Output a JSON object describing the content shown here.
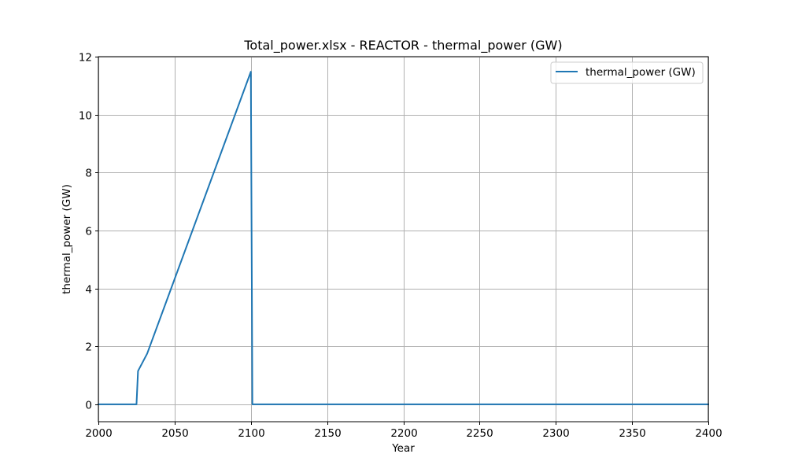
{
  "chart_data": {
    "type": "line",
    "title": "Total_power.xlsx - REACTOR - thermal_power (GW)",
    "xlabel": "Year",
    "ylabel": "thermal_power (GW)",
    "xlim": [
      2000,
      2400
    ],
    "ylim": [
      -0.6,
      12.0
    ],
    "xticks": [
      2000,
      2050,
      2100,
      2150,
      2200,
      2250,
      2300,
      2350,
      2400
    ],
    "yticks": [
      0,
      2,
      4,
      6,
      8,
      10,
      12
    ],
    "grid": true,
    "legend_position": "top-right",
    "series": [
      {
        "name": "thermal_power (GW)",
        "color": "#1f77b4",
        "x": [
          2000,
          2025,
          2026,
          2032,
          2100,
          2101,
          2400
        ],
        "y": [
          0,
          0,
          1.15,
          1.75,
          11.48,
          0,
          0
        ]
      }
    ]
  }
}
